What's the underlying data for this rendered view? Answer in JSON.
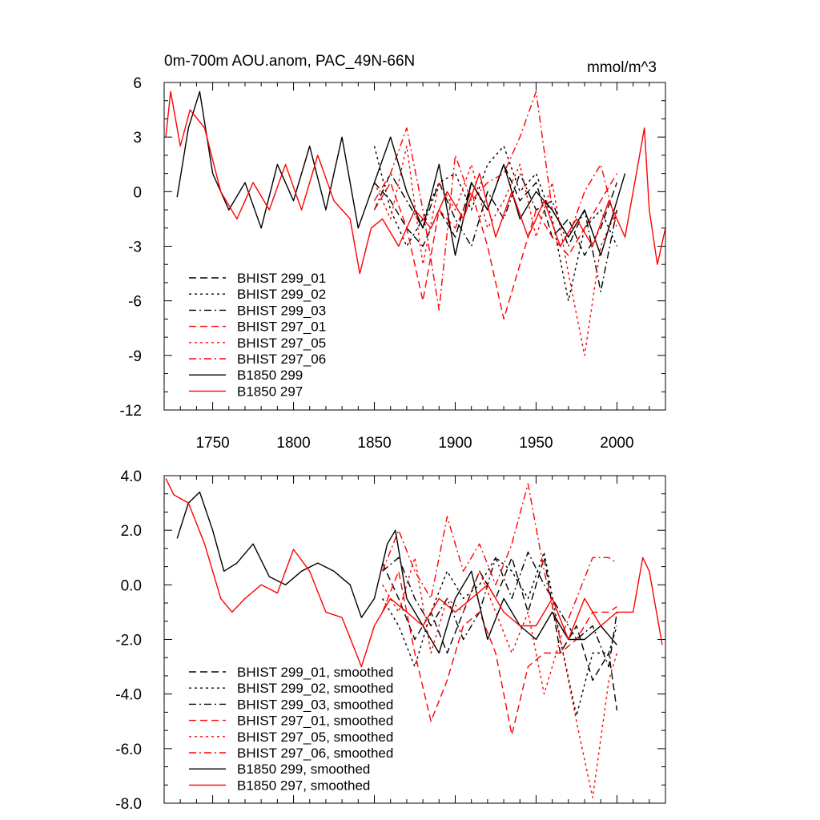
{
  "chart_data": [
    {
      "type": "line",
      "title": "0m-700m AOU.anom, PAC_49N-66N",
      "units": "mmol/m^3",
      "xlim": [
        1720,
        2030
      ],
      "ylim": [
        -12,
        6
      ],
      "x_ticks": [
        1750,
        1800,
        1850,
        1900,
        1950,
        2000
      ],
      "x_tick_labels": [
        "1750",
        "1800",
        "1850",
        "1900",
        "1950",
        "2000"
      ],
      "y_ticks": [
        -12,
        -9,
        -6,
        -3,
        0,
        3,
        6
      ],
      "y_tick_labels": [
        "-12",
        "-9",
        "-6",
        "-3",
        "0",
        "3",
        "6"
      ],
      "legend_position": "lower-left",
      "series": [
        {
          "name": "BHIST 299_01",
          "color": "#000000",
          "dash": "dashed",
          "x": [
            1850,
            1860,
            1870,
            1880,
            1890,
            1900,
            1910,
            1920,
            1930,
            1940,
            1950,
            1960,
            1970,
            1980,
            1990,
            2000
          ],
          "y": [
            0.5,
            -0.5,
            -2.0,
            -3.0,
            -1.0,
            -2.5,
            0.5,
            -1.0,
            1.5,
            -0.5,
            0.5,
            -2.5,
            -1.5,
            -3.5,
            -2.0,
            0.5
          ]
        },
        {
          "name": "BHIST 299_02",
          "color": "#000000",
          "dash": "dotted",
          "x": [
            1850,
            1860,
            1870,
            1880,
            1890,
            1900,
            1910,
            1920,
            1930,
            1940,
            1950,
            1960,
            1970,
            1980,
            1990,
            2000
          ],
          "y": [
            2.5,
            -1.0,
            -3.0,
            -1.5,
            0.5,
            1.0,
            -1.0,
            1.5,
            2.5,
            0.0,
            1.0,
            -1.5,
            -6.0,
            -2.0,
            -1.0,
            -3.0
          ]
        },
        {
          "name": "BHIST 299_03",
          "color": "#000000",
          "dash": "dashdot",
          "x": [
            1850,
            1860,
            1870,
            1880,
            1890,
            1900,
            1910,
            1920,
            1930,
            1940,
            1950,
            1960,
            1970,
            1980,
            1990,
            2000
          ],
          "y": [
            -1.0,
            1.0,
            -0.5,
            -2.0,
            0.5,
            -1.5,
            -3.0,
            0.0,
            -1.5,
            1.0,
            -1.0,
            -0.5,
            -3.0,
            -1.0,
            -5.5,
            -1.0
          ]
        },
        {
          "name": "BHIST 297_01",
          "color": "#ff0000",
          "dash": "dashed",
          "x": [
            1850,
            1860,
            1870,
            1880,
            1890,
            1900,
            1910,
            1920,
            1930,
            1940,
            1950,
            1960,
            1970,
            1980,
            1990,
            2000
          ],
          "y": [
            -1.0,
            0.5,
            -2.0,
            -6.0,
            -1.0,
            -2.0,
            0.0,
            -3.0,
            -7.0,
            -4.0,
            -1.0,
            -2.5,
            -3.5,
            -2.0,
            -0.5,
            1.0
          ]
        },
        {
          "name": "BHIST 297_05",
          "color": "#ff0000",
          "dash": "dotted",
          "x": [
            1850,
            1860,
            1870,
            1880,
            1890,
            1900,
            1910,
            1920,
            1930,
            1940,
            1950,
            1960,
            1970,
            1980,
            1990,
            2000
          ],
          "y": [
            0.5,
            -1.5,
            2.5,
            -4.0,
            0.5,
            -1.0,
            1.5,
            -2.0,
            -0.5,
            1.5,
            -2.5,
            0.5,
            -4.5,
            -9.0,
            -3.0,
            -1.0
          ]
        },
        {
          "name": "BHIST 297_06",
          "color": "#ff0000",
          "dash": "dashdot",
          "x": [
            1850,
            1860,
            1870,
            1880,
            1890,
            1900,
            1910,
            1920,
            1930,
            1940,
            1950,
            1960,
            1970,
            1980,
            1990,
            2000
          ],
          "y": [
            -0.5,
            1.0,
            3.5,
            -1.0,
            -6.5,
            2.0,
            -0.5,
            0.5,
            1.0,
            3.0,
            5.5,
            -1.0,
            -2.5,
            0.0,
            1.5,
            -2.0
          ]
        },
        {
          "name": "B1850 299",
          "color": "#000000",
          "dash": "solid",
          "x": [
            1728,
            1735,
            1742,
            1750,
            1760,
            1770,
            1780,
            1790,
            1800,
            1810,
            1820,
            1830,
            1840,
            1850,
            1860,
            1870,
            1880,
            1890,
            1900,
            1910,
            1920,
            1930,
            1940,
            1950,
            1960,
            1970,
            1980,
            1990,
            2000,
            2005
          ],
          "y": [
            -0.3,
            3.5,
            5.5,
            1.0,
            -1.0,
            0.5,
            -2.0,
            1.5,
            -0.5,
            2.5,
            -1.0,
            3.0,
            -2.0,
            0.5,
            3.0,
            0.0,
            -2.0,
            1.5,
            -3.5,
            0.5,
            -1.0,
            1.5,
            -1.5,
            0.0,
            -1.0,
            -2.5,
            -1.0,
            -3.5,
            -0.5,
            1.0
          ]
        },
        {
          "name": "B1850 297",
          "color": "#ff0000",
          "dash": "solid",
          "x": [
            1721,
            1724,
            1730,
            1736,
            1745,
            1755,
            1765,
            1775,
            1785,
            1795,
            1805,
            1815,
            1825,
            1835,
            1841,
            1848,
            1855,
            1865,
            1875,
            1885,
            1895,
            1905,
            1915,
            1925,
            1935,
            1945,
            1955,
            1965,
            1975,
            1985,
            1995,
            2005,
            2012,
            2017,
            2020,
            2025,
            2030
          ],
          "y": [
            3.0,
            5.5,
            2.5,
            4.5,
            3.5,
            0.0,
            -1.5,
            0.5,
            -1.0,
            1.5,
            -1.0,
            2.0,
            -0.5,
            -1.5,
            -4.5,
            -2.0,
            -1.5,
            -3.0,
            -1.0,
            -2.0,
            0.0,
            -1.5,
            1.0,
            -2.5,
            0.0,
            -2.5,
            -0.5,
            -3.0,
            -1.5,
            -3.0,
            -0.5,
            -2.5,
            1.0,
            3.5,
            -1.0,
            -4.0,
            -2.0
          ]
        }
      ]
    },
    {
      "type": "line",
      "xlim": [
        1720,
        2030
      ],
      "ylim": [
        -8.0,
        4.0
      ],
      "x_ticks": [
        1750,
        1800,
        1850,
        1900,
        1950,
        2000
      ],
      "y_ticks": [
        -8.0,
        -6.0,
        -4.0,
        -2.0,
        0.0,
        2.0,
        4.0
      ],
      "y_tick_labels": [
        "-8.0",
        "-6.0",
        "-4.0",
        "-2.0",
        "0.0",
        "2.0",
        "4.0"
      ],
      "legend_position": "lower-left",
      "series": [
        {
          "name": "BHIST 299_01, smoothed",
          "color": "#000000",
          "dash": "dashed",
          "x": [
            1855,
            1865,
            1875,
            1885,
            1895,
            1905,
            1915,
            1925,
            1935,
            1945,
            1955,
            1965,
            1975,
            1985,
            1995,
            2000
          ],
          "y": [
            0.8,
            -0.5,
            -2.0,
            -1.0,
            -2.5,
            -1.0,
            0.5,
            -0.5,
            1.0,
            -1.0,
            1.0,
            -2.5,
            -1.5,
            -3.5,
            -2.5,
            -4.6
          ]
        },
        {
          "name": "BHIST 299_02, smoothed",
          "color": "#000000",
          "dash": "dotted",
          "x": [
            1855,
            1865,
            1875,
            1885,
            1895,
            1905,
            1915,
            1925,
            1935,
            1945,
            1955,
            1965,
            1975,
            1985,
            1995,
            2000
          ],
          "y": [
            -0.5,
            -1.5,
            -3.0,
            -1.0,
            0.5,
            -0.5,
            0.0,
            1.0,
            0.5,
            -0.5,
            1.2,
            -2.0,
            -4.8,
            -2.5,
            -2.5,
            -1.5
          ]
        },
        {
          "name": "BHIST 299_03, smoothed",
          "color": "#000000",
          "dash": "dashdot",
          "x": [
            1855,
            1865,
            1875,
            1885,
            1895,
            1905,
            1915,
            1925,
            1935,
            1945,
            1955,
            1965,
            1975,
            1985,
            1995,
            2000
          ],
          "y": [
            0.5,
            1.0,
            -0.5,
            -1.5,
            -0.5,
            -2.0,
            -1.0,
            1.0,
            -0.5,
            1.2,
            0.0,
            -1.0,
            -2.0,
            -1.5,
            -3.0,
            -1.0
          ]
        },
        {
          "name": "BHIST 297_01, smoothed",
          "color": "#ff0000",
          "dash": "dashed",
          "x": [
            1855,
            1865,
            1875,
            1885,
            1895,
            1905,
            1915,
            1925,
            1935,
            1945,
            1955,
            1965,
            1975,
            1985,
            1995,
            2000
          ],
          "y": [
            -1.0,
            0.5,
            -2.5,
            -5.0,
            -3.5,
            -1.5,
            -1.0,
            -2.5,
            -5.5,
            -3.0,
            -2.5,
            -2.5,
            -2.0,
            -1.0,
            -1.0,
            -0.8
          ]
        },
        {
          "name": "BHIST 297_05, smoothed",
          "color": "#ff0000",
          "dash": "dotted",
          "x": [
            1855,
            1865,
            1875,
            1885,
            1895,
            1905,
            1915,
            1925,
            1935,
            1945,
            1955,
            1965,
            1975,
            1985,
            1995,
            2000
          ],
          "y": [
            0.0,
            -1.0,
            1.0,
            -2.5,
            -0.5,
            -1.0,
            0.5,
            -1.0,
            -2.5,
            -1.0,
            -4.0,
            -2.0,
            -5.0,
            -7.8,
            -3.5,
            -2.5
          ]
        },
        {
          "name": "BHIST 297_06, smoothed",
          "color": "#ff0000",
          "dash": "dashdot",
          "x": [
            1855,
            1865,
            1875,
            1885,
            1895,
            1905,
            1915,
            1925,
            1935,
            1945,
            1955,
            1965,
            1975,
            1985,
            1995,
            2000
          ],
          "y": [
            0.5,
            2.0,
            0.5,
            -0.5,
            2.5,
            0.5,
            1.5,
            0.0,
            1.5,
            3.7,
            0.5,
            -2.0,
            -0.5,
            1.0,
            1.0,
            0.8
          ]
        },
        {
          "name": "B1850 299, smoothed",
          "color": "#000000",
          "dash": "solid",
          "x": [
            1728,
            1735,
            1742,
            1750,
            1757,
            1765,
            1775,
            1785,
            1795,
            1805,
            1815,
            1825,
            1835,
            1842,
            1850,
            1858,
            1863,
            1870,
            1880,
            1890,
            1900,
            1910,
            1920,
            1930,
            1940,
            1950,
            1960,
            1970,
            1980,
            1990,
            2000
          ],
          "y": [
            1.7,
            3.0,
            3.4,
            2.0,
            0.5,
            0.8,
            1.5,
            0.3,
            0.0,
            0.5,
            0.8,
            0.5,
            0.0,
            -1.2,
            -0.5,
            1.5,
            2.0,
            -0.5,
            -1.5,
            -2.5,
            -0.5,
            0.5,
            -2.0,
            -0.5,
            -1.5,
            -2.0,
            -1.0,
            -2.0,
            -2.0,
            -1.5,
            -2.2
          ]
        },
        {
          "name": "B1850 297, smoothed",
          "color": "#ff0000",
          "dash": "solid",
          "x": [
            1721,
            1726,
            1735,
            1745,
            1755,
            1762,
            1770,
            1780,
            1790,
            1800,
            1810,
            1820,
            1830,
            1842,
            1850,
            1860,
            1870,
            1880,
            1890,
            1900,
            1910,
            1920,
            1930,
            1940,
            1950,
            1960,
            1970,
            1980,
            1990,
            2000,
            2010,
            2016,
            2020,
            2028
          ],
          "y": [
            3.9,
            3.3,
            3.0,
            1.5,
            -0.5,
            -1.0,
            -0.5,
            0.0,
            -0.3,
            1.3,
            0.5,
            -1.0,
            -1.2,
            -3.0,
            -1.5,
            -0.5,
            -1.0,
            -1.5,
            -0.5,
            -1.0,
            -0.5,
            0.0,
            -1.0,
            -1.5,
            -1.5,
            -0.5,
            -2.0,
            -0.5,
            -1.5,
            -1.0,
            -1.0,
            1.0,
            0.5,
            -2.2
          ]
        }
      ]
    }
  ]
}
